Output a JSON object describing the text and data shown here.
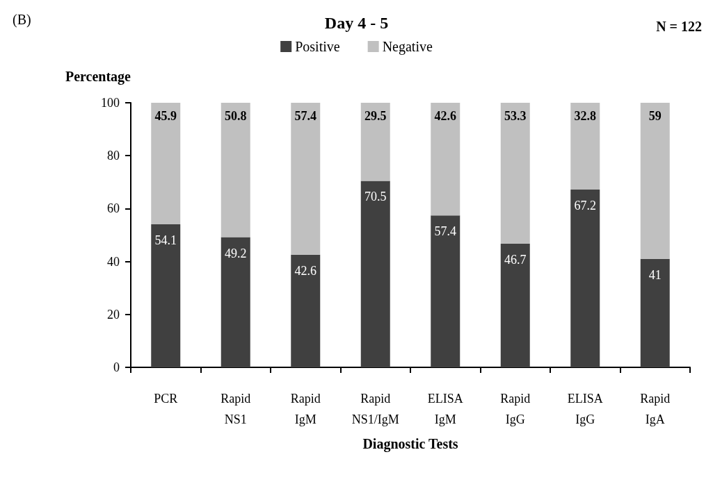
{
  "chart_data": {
    "type": "bar",
    "stacked": true,
    "title": "Day 4 - 5",
    "xlabel": "Diagnostic Tests",
    "ylabel": "Percentage",
    "annotations": [
      "(B)",
      "N = 122"
    ],
    "categories": [
      "PCR",
      "Rapid NS1",
      "Rapid IgM",
      "Rapid NS1/IgM",
      "ELISA IgM",
      "Rapid IgG",
      "ELISA IgG",
      "Rapid IgA"
    ],
    "series": [
      {
        "name": "Positive",
        "color": "#404040",
        "values": [
          54.1,
          49.2,
          42.6,
          70.5,
          57.4,
          46.7,
          67.2,
          41
        ]
      },
      {
        "name": "Negative",
        "color": "#c0c0c0",
        "values": [
          45.9,
          50.8,
          57.4,
          29.5,
          42.6,
          53.3,
          32.8,
          59
        ]
      }
    ],
    "ylim": [
      0,
      100
    ],
    "yticks": [
      0,
      20,
      40,
      60,
      80,
      100
    ],
    "grid": false,
    "legend": "top",
    "data_labels": true
  }
}
